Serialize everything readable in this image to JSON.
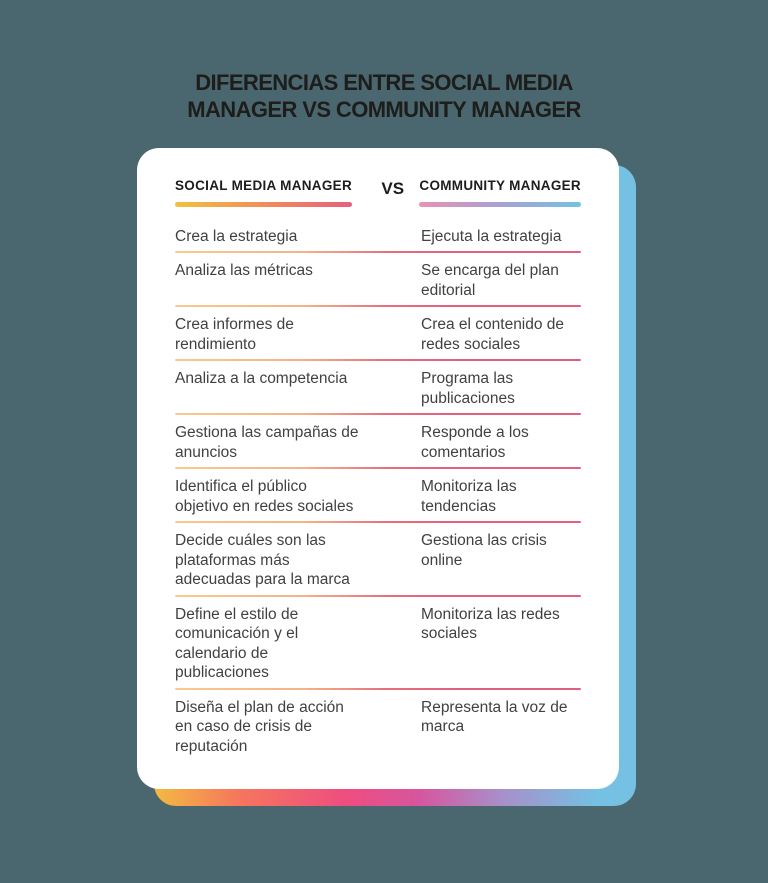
{
  "page": {
    "background_color": "#4a676f"
  },
  "title": {
    "line1": "DIFERENCIAS ENTRE SOCIAL MEDIA",
    "line2": "MANAGER VS COMMUNITY MANAGER",
    "color": "#1d1d1b"
  },
  "card": {
    "background_color": "#ffffff",
    "shadow_gradient": [
      "#f3ba41",
      "#f5755e",
      "#ee4d80",
      "#d6569e",
      "#a88fc9",
      "#74c1e3"
    ],
    "left_header": "SOCIAL MEDIA MANAGER",
    "vs_label": "VS",
    "right_header": "COMMUNITY MANAGER",
    "left_header_bar_gradient": [
      "#f2c13d",
      "#f0885f",
      "#e75e7d"
    ],
    "right_header_bar_gradient": [
      "#e992b3",
      "#ae9ed1",
      "#74c2e3"
    ],
    "separator_gradient": [
      "#f8ca8d",
      "#f5b286",
      "#e0607e"
    ],
    "rows": [
      {
        "left": "Crea la estrategia",
        "right": "Ejecuta la estrategia"
      },
      {
        "left": "Analiza las métricas",
        "right": "Se encarga del plan editorial"
      },
      {
        "left": "Crea informes de rendimiento",
        "right": "Crea el contenido de redes sociales"
      },
      {
        "left": "Analiza a la competencia",
        "right": "Programa las publicaciones"
      },
      {
        "left": "Gestiona las campañas de anuncios",
        "right": "Responde a los comentarios"
      },
      {
        "left": "Identifica el público objetivo en redes sociales",
        "right": "Monitoriza las tendencias"
      },
      {
        "left": "Decide cuáles son las plataformas más adecuadas para la marca",
        "right": "Gestiona las crisis online"
      },
      {
        "left": "Define el estilo de comunicación y el calendario de publicaciones",
        "right": "Monitoriza las redes sociales"
      },
      {
        "left": "Diseña el plan de acción en caso de crisis de reputación",
        "right": "Representa la voz de marca"
      }
    ]
  }
}
